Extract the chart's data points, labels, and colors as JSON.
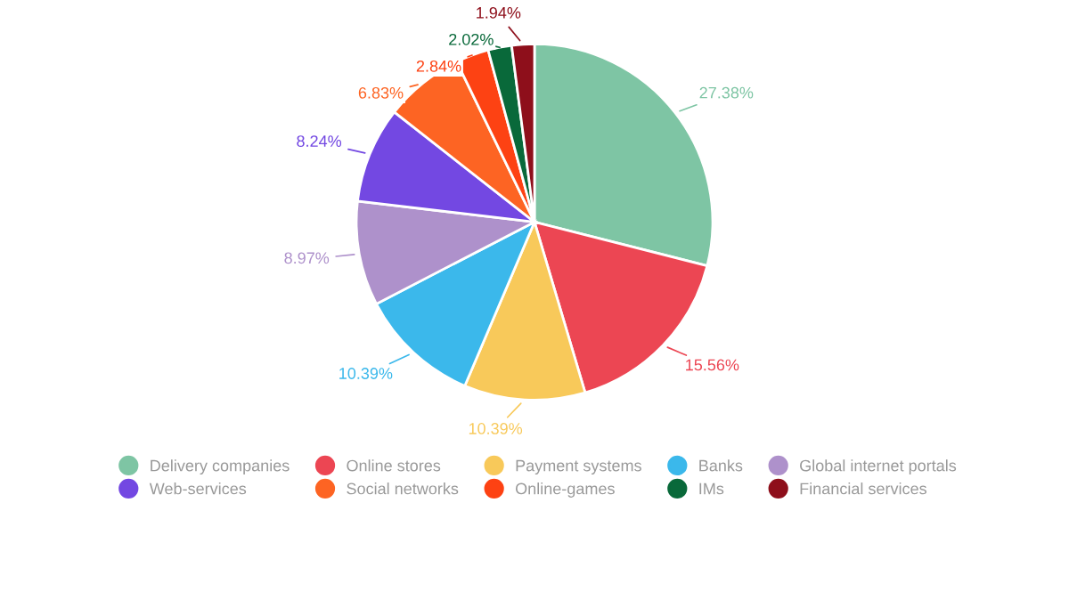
{
  "chart_data": {
    "type": "pie",
    "categories": [
      "Delivery companies",
      "Online stores",
      "Payment systems",
      "Banks",
      "Global internet portals",
      "Web-services",
      "Social networks",
      "Online-games",
      "IMs",
      "Financial services"
    ],
    "values": [
      27.38,
      15.56,
      10.39,
      10.39,
      8.97,
      8.24,
      6.83,
      2.84,
      2.02,
      1.94
    ],
    "value_labels": [
      "27.38%",
      "15.56%",
      "10.39%",
      "10.39%",
      "8.97%",
      "8.24%",
      "6.83%",
      "2.84%",
      "2.02%",
      "1.94%"
    ],
    "colors": [
      "#7ec5a4",
      "#ec4653",
      "#f8c95a",
      "#3bb8eb",
      "#ae91cb",
      "#7348e2",
      "#fd6423",
      "#fd4213",
      "#09693a",
      "#8e0f1b"
    ],
    "legend": "bottom"
  }
}
